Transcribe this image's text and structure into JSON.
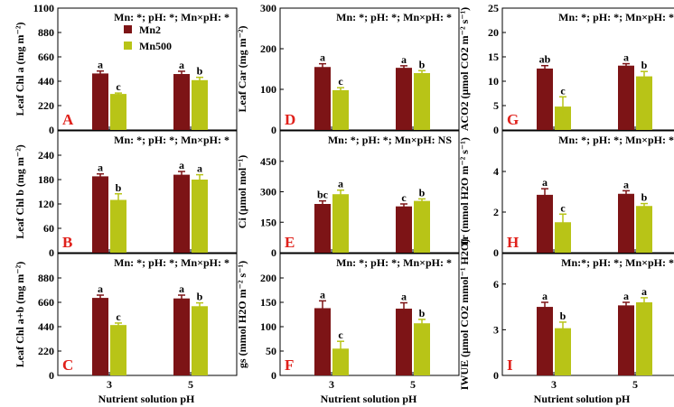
{
  "figure": {
    "xlabel": "Nutrient solution pH",
    "legend": [
      "Mn2",
      "Mn500"
    ],
    "colors": {
      "Mn2": "#7d1416",
      "Mn500": "#b8c417",
      "panel_letter": "#e0201a"
    }
  },
  "chart_data": [
    {
      "id": "A",
      "type": "bar",
      "letter": "A",
      "categories": [
        "3",
        "5"
      ],
      "ylabel": "Leaf Chl a (mg m⁻²)",
      "ylim": [
        0,
        1100
      ],
      "yticks": [
        0,
        220,
        440,
        660,
        880,
        1100
      ],
      "stats": "Mn: *; pH: *; Mn×pH: *",
      "series": [
        {
          "name": "Mn2",
          "values": [
            510,
            505
          ],
          "errors": [
            22,
            25
          ],
          "letters": [
            "a",
            "a"
          ]
        },
        {
          "name": "Mn500",
          "values": [
            325,
            450
          ],
          "errors": [
            8,
            25
          ],
          "letters": [
            "c",
            "b"
          ]
        }
      ]
    },
    {
      "id": "B",
      "type": "bar",
      "letter": "B",
      "categories": [
        "3",
        "5"
      ],
      "ylabel": "Leaf Chl b (mg m⁻²)",
      "ylim": [
        0,
        300
      ],
      "yticks": [
        0,
        60,
        120,
        180,
        240
      ],
      "stats": "Mn: *; pH: *; Mn×pH: *",
      "series": [
        {
          "name": "Mn2",
          "values": [
            188,
            192
          ],
          "errors": [
            6,
            8
          ],
          "letters": [
            "a",
            "a"
          ]
        },
        {
          "name": "Mn500",
          "values": [
            130,
            180
          ],
          "errors": [
            15,
            12
          ],
          "letters": [
            "b",
            "a"
          ]
        }
      ]
    },
    {
      "id": "C",
      "type": "bar",
      "letter": "C",
      "categories": [
        "3",
        "5"
      ],
      "ylabel": "Leaf Chl a+b (mg m⁻²)",
      "ylim": [
        0,
        1100
      ],
      "yticks": [
        0,
        220,
        440,
        660,
        880
      ],
      "stats": "Mn: *; pH: *; Mn×pH: *",
      "series": [
        {
          "name": "Mn2",
          "values": [
            700,
            695
          ],
          "errors": [
            25,
            30
          ],
          "letters": [
            "a",
            "a"
          ]
        },
        {
          "name": "Mn500",
          "values": [
            455,
            625
          ],
          "errors": [
            18,
            30
          ],
          "letters": [
            "c",
            "b"
          ]
        }
      ]
    },
    {
      "id": "D",
      "type": "bar",
      "letter": "D",
      "categories": [
        "3",
        "5"
      ],
      "ylabel": "Leaf Car (mg m⁻²)",
      "ylim": [
        0,
        300
      ],
      "yticks": [
        0,
        100,
        200,
        300
      ],
      "stats": "Mn: *; pH: *; Mn×pH: *",
      "series": [
        {
          "name": "Mn2",
          "values": [
            155,
            153
          ],
          "errors": [
            8,
            5
          ],
          "letters": [
            "a",
            "a"
          ]
        },
        {
          "name": "Mn500",
          "values": [
            98,
            140
          ],
          "errors": [
            6,
            6
          ],
          "letters": [
            "c",
            "b"
          ]
        }
      ]
    },
    {
      "id": "E",
      "type": "bar",
      "letter": "E",
      "categories": [
        "3",
        "5"
      ],
      "ylabel": "Ci (μmol mol⁻¹)",
      "ylim": [
        0,
        600
      ],
      "yticks": [
        0,
        150,
        300,
        450
      ],
      "stats": "Mn: *; pH: *; Mn×pH: NS",
      "series": [
        {
          "name": "Mn2",
          "values": [
            240,
            228
          ],
          "errors": [
            15,
            12
          ],
          "letters": [
            "bc",
            "c"
          ]
        },
        {
          "name": "Mn500",
          "values": [
            288,
            255
          ],
          "errors": [
            20,
            10
          ],
          "letters": [
            "a",
            "b"
          ]
        }
      ]
    },
    {
      "id": "F",
      "type": "bar",
      "letter": "F",
      "categories": [
        "3",
        "5"
      ],
      "ylabel": "gs (mmol H2O m⁻² s⁻¹)",
      "ylim": [
        0,
        250
      ],
      "yticks": [
        0,
        50,
        100,
        150,
        200
      ],
      "stats": "Mn: *; pH: *; Mn×pH: *",
      "series": [
        {
          "name": "Mn2",
          "values": [
            138,
            137
          ],
          "errors": [
            15,
            12
          ],
          "letters": [
            "a",
            "a"
          ]
        },
        {
          "name": "Mn500",
          "values": [
            55,
            107
          ],
          "errors": [
            15,
            8
          ],
          "letters": [
            "c",
            "b"
          ]
        }
      ]
    },
    {
      "id": "G",
      "type": "bar",
      "letter": "G",
      "categories": [
        "3",
        "5"
      ],
      "ylabel": "ACO2 (μmol CO2 m⁻² s⁻¹)",
      "ylim": [
        0,
        25
      ],
      "yticks": [
        0,
        5,
        10,
        15,
        20,
        25
      ],
      "stats": "Mn: *; pH: *; Mn×pH: *",
      "series": [
        {
          "name": "Mn2",
          "values": [
            12.6,
            13.2
          ],
          "errors": [
            0.6,
            0.4
          ],
          "letters": [
            "ab",
            "a"
          ]
        },
        {
          "name": "Mn500",
          "values": [
            4.8,
            11.0
          ],
          "errors": [
            2.0,
            1.0
          ],
          "letters": [
            "c",
            "b"
          ]
        }
      ]
    },
    {
      "id": "H",
      "type": "bar",
      "letter": "H",
      "categories": [
        "3",
        "5"
      ],
      "ylabel": "Tr (mmol H2O m⁻² s⁻¹)",
      "ylim": [
        0,
        6
      ],
      "yticks": [
        0,
        2,
        4
      ],
      "stats": "Mn: *; pH: *; Mn×pH: *",
      "series": [
        {
          "name": "Mn2",
          "values": [
            2.85,
            2.9
          ],
          "errors": [
            0.3,
            0.15
          ],
          "letters": [
            "a",
            "a"
          ]
        },
        {
          "name": "Mn500",
          "values": [
            1.5,
            2.3
          ],
          "errors": [
            0.4,
            0.12
          ],
          "letters": [
            "c",
            "b"
          ]
        }
      ]
    },
    {
      "id": "I",
      "type": "bar",
      "letter": "I",
      "categories": [
        "3",
        "5"
      ],
      "ylabel": "IWUE (μmol CO2 mmol⁻¹ H2O)",
      "ylim": [
        0,
        8
      ],
      "yticks": [
        0,
        3,
        6
      ],
      "stats": "Mn:*; pH: *; Mn×pH: *",
      "series": [
        {
          "name": "Mn2",
          "values": [
            4.5,
            4.6
          ],
          "errors": [
            0.3,
            0.2
          ],
          "letters": [
            "a",
            "a"
          ]
        },
        {
          "name": "Mn500",
          "values": [
            3.1,
            4.8
          ],
          "errors": [
            0.4,
            0.3
          ],
          "letters": [
            "b",
            "a"
          ]
        }
      ]
    }
  ]
}
